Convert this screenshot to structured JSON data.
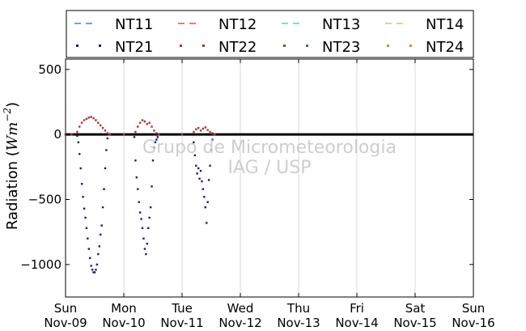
{
  "chart_data": {
    "type": "scatter",
    "title": "",
    "xlabel": "",
    "ylabel": "Radiation (Wm⁻²)",
    "ylabel_parts": [
      "Radiation (",
      "Wm",
      "−2",
      ")"
    ],
    "ylim": [
      -1250,
      580
    ],
    "yticks": [
      500,
      0,
      -500,
      -1000
    ],
    "ytick_labels": [
      "500",
      "0",
      "−500",
      "−1000"
    ],
    "xlim": [
      0,
      7
    ],
    "xticks": [
      {
        "day": "Sun",
        "date": "Nov-09"
      },
      {
        "day": "Mon",
        "date": "Nov-10"
      },
      {
        "day": "Tue",
        "date": "Nov-11"
      },
      {
        "day": "Wed",
        "date": "Nov-12"
      },
      {
        "day": "Thu",
        "date": "Nov-13"
      },
      {
        "day": "Fri",
        "date": "Nov-14"
      },
      {
        "day": "Sat",
        "date": "Nov-15"
      },
      {
        "day": "Sun",
        "date": "Nov-16"
      }
    ],
    "grid": "vertical",
    "legend_position": "top",
    "watermark": [
      "Grupo de Micrometeorologia",
      "IAG / USP"
    ],
    "series": [
      {
        "name": "NT11",
        "style": "dashed",
        "color": "#4a7fd4",
        "points": []
      },
      {
        "name": "NT12",
        "style": "dashed",
        "color": "#d9534f",
        "points": []
      },
      {
        "name": "NT13",
        "style": "dashed",
        "color": "#5fd0c0",
        "points": []
      },
      {
        "name": "NT14",
        "style": "dashed",
        "color": "#c8c87a",
        "points": []
      },
      {
        "name": "NT21",
        "style": "dotted",
        "color": "#1a1a8c",
        "points": [
          [
            0.0,
            0
          ],
          [
            0.12,
            0
          ],
          [
            0.2,
            -10
          ],
          [
            0.22,
            -60
          ],
          [
            0.24,
            -150
          ],
          [
            0.26,
            -260
          ],
          [
            0.28,
            -380
          ],
          [
            0.3,
            -480
          ],
          [
            0.32,
            -570
          ],
          [
            0.34,
            -640
          ],
          [
            0.36,
            -720
          ],
          [
            0.38,
            -800
          ],
          [
            0.4,
            -880
          ],
          [
            0.42,
            -950
          ],
          [
            0.44,
            -1010
          ],
          [
            0.46,
            -1040
          ],
          [
            0.48,
            -1060
          ],
          [
            0.5,
            -1060
          ],
          [
            0.52,
            -1040
          ],
          [
            0.54,
            -1000
          ],
          [
            0.56,
            -920
          ],
          [
            0.58,
            -860
          ],
          [
            0.6,
            -770
          ],
          [
            0.62,
            -700
          ],
          [
            0.64,
            -560
          ],
          [
            0.66,
            -420
          ],
          [
            0.68,
            -260
          ],
          [
            0.7,
            -120
          ],
          [
            0.72,
            -30
          ],
          [
            0.74,
            0
          ],
          [
            1.0,
            0
          ],
          [
            1.18,
            -20
          ],
          [
            1.2,
            -200
          ],
          [
            1.22,
            -330
          ],
          [
            1.24,
            -420
          ],
          [
            1.26,
            -520
          ],
          [
            1.28,
            -600
          ],
          [
            1.3,
            -650
          ],
          [
            1.32,
            -720
          ],
          [
            1.34,
            -800
          ],
          [
            1.36,
            -880
          ],
          [
            1.38,
            -920
          ],
          [
            1.4,
            -840
          ],
          [
            1.42,
            -720
          ],
          [
            1.44,
            -640
          ],
          [
            1.46,
            -560
          ],
          [
            1.48,
            -400
          ],
          [
            1.5,
            -200
          ],
          [
            1.52,
            -100
          ],
          [
            1.54,
            -60
          ],
          [
            1.56,
            -40
          ],
          [
            1.58,
            -20
          ],
          [
            1.6,
            0
          ],
          [
            2.0,
            0
          ],
          [
            2.2,
            -60
          ],
          [
            2.22,
            -160
          ],
          [
            2.24,
            -240
          ],
          [
            2.26,
            -300
          ],
          [
            2.28,
            -260
          ],
          [
            2.3,
            -340
          ],
          [
            2.32,
            -280
          ],
          [
            2.34,
            -360
          ],
          [
            2.36,
            -420
          ],
          [
            2.38,
            -480
          ],
          [
            2.4,
            -560
          ],
          [
            2.42,
            -680
          ],
          [
            2.44,
            -520
          ],
          [
            2.46,
            -350
          ],
          [
            2.48,
            -240
          ],
          [
            2.5,
            -120
          ],
          [
            2.52,
            -40
          ],
          [
            2.54,
            0
          ]
        ]
      },
      {
        "name": "NT22",
        "style": "dotted",
        "color": "#a83232",
        "points": [
          [
            0.0,
            0
          ],
          [
            0.1,
            0
          ],
          [
            0.2,
            20
          ],
          [
            0.24,
            60
          ],
          [
            0.28,
            90
          ],
          [
            0.32,
            110
          ],
          [
            0.36,
            120
          ],
          [
            0.4,
            130
          ],
          [
            0.44,
            135
          ],
          [
            0.48,
            125
          ],
          [
            0.52,
            110
          ],
          [
            0.56,
            90
          ],
          [
            0.6,
            70
          ],
          [
            0.64,
            50
          ],
          [
            0.68,
            30
          ],
          [
            0.72,
            10
          ],
          [
            0.76,
            0
          ],
          [
            1.0,
            0
          ],
          [
            1.2,
            20
          ],
          [
            1.24,
            60
          ],
          [
            1.28,
            90
          ],
          [
            1.32,
            110
          ],
          [
            1.36,
            100
          ],
          [
            1.4,
            80
          ],
          [
            1.44,
            90
          ],
          [
            1.48,
            60
          ],
          [
            1.52,
            30
          ],
          [
            1.56,
            10
          ],
          [
            1.6,
            0
          ],
          [
            2.0,
            0
          ],
          [
            2.2,
            20
          ],
          [
            2.24,
            40
          ],
          [
            2.28,
            50
          ],
          [
            2.32,
            30
          ],
          [
            2.36,
            45
          ],
          [
            2.4,
            55
          ],
          [
            2.44,
            35
          ],
          [
            2.48,
            20
          ],
          [
            2.52,
            10
          ],
          [
            2.56,
            0
          ]
        ]
      },
      {
        "name": "NT23",
        "style": "dotted",
        "color": "#2e7d32",
        "points": []
      },
      {
        "name": "NT24",
        "style": "dotted",
        "color": "#c8941a",
        "points": []
      }
    ]
  }
}
